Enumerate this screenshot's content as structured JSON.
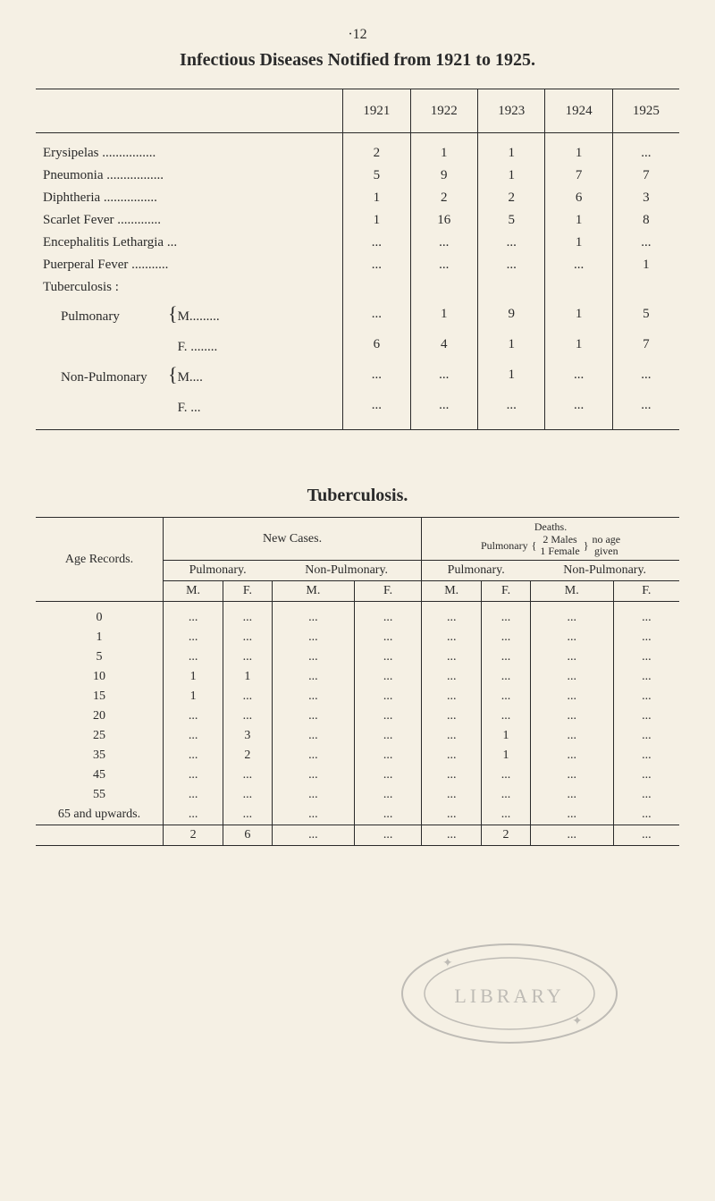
{
  "page_number": "·12",
  "title": "Infectious Diseases Notified from 1921 to 1925.",
  "table1": {
    "years": [
      "1921",
      "1922",
      "1923",
      "1924",
      "1925"
    ],
    "rows": [
      {
        "label": "Erysipelas",
        "dots": true,
        "vals": [
          "2",
          "1",
          "1",
          "1",
          "..."
        ]
      },
      {
        "label": "Pneumonia",
        "dots": true,
        "vals": [
          "5",
          "9",
          "1",
          "7",
          "7"
        ]
      },
      {
        "label": "Diphtheria",
        "dots": true,
        "vals": [
          "1",
          "2",
          "2",
          "6",
          "3"
        ]
      },
      {
        "label": "Scarlet Fever",
        "dots": true,
        "vals": [
          "1",
          "16",
          "5",
          "1",
          "8"
        ]
      },
      {
        "label": "Encephalitis Lethargia ...",
        "dots": false,
        "vals": [
          "...",
          "...",
          "...",
          "1",
          "..."
        ]
      },
      {
        "label": "Puerperal Fever",
        "dots": true,
        "vals": [
          "...",
          "...",
          "...",
          "...",
          "1"
        ]
      },
      {
        "label": "Tuberculosis :",
        "dots": false,
        "vals": [
          "",
          "",
          "",
          "",
          ""
        ]
      },
      {
        "label": "Pulmonary",
        "sub": "M.........",
        "dots": false,
        "vals": [
          "...",
          "1",
          "9",
          "1",
          "5"
        ]
      },
      {
        "label": "",
        "sub": "F. ........",
        "dots": false,
        "vals": [
          "6",
          "4",
          "1",
          "1",
          "7"
        ]
      },
      {
        "label": "Non-Pulmonary",
        "sub": "M....",
        "dots": false,
        "vals": [
          "...",
          "...",
          "1",
          "...",
          "..."
        ]
      },
      {
        "label": "",
        "sub": "F. ...",
        "dots": false,
        "vals": [
          "...",
          "...",
          "...",
          "...",
          "..."
        ]
      }
    ]
  },
  "subtitle": "Tuberculosis.",
  "table2": {
    "age_records_label": "Age Records.",
    "new_cases_label": "New Cases.",
    "deaths_label": "Deaths.",
    "pulmonary_note": "Pulmonary",
    "note_braces": "2 Males\n1 Female",
    "note_right": "no age\ngiven",
    "pulmonary": "Pulmonary.",
    "non_pulmonary": "Non-Pulmonary.",
    "mf": [
      "M.",
      "F.",
      "M.",
      "F.",
      "M.",
      "F.",
      "M.",
      "F."
    ],
    "ages": [
      "0",
      "1",
      "5",
      "10",
      "15",
      "20",
      "25",
      "35",
      "45",
      "55",
      "65 and upwards."
    ],
    "data": [
      [
        "...",
        "...",
        "...",
        "...",
        "...",
        "...",
        "...",
        "..."
      ],
      [
        "...",
        "...",
        "...",
        "...",
        "...",
        "...",
        "...",
        "..."
      ],
      [
        "...",
        "...",
        "...",
        "...",
        "...",
        "...",
        "...",
        "..."
      ],
      [
        "1",
        "1",
        "...",
        "...",
        "...",
        "...",
        "...",
        "..."
      ],
      [
        "1",
        "...",
        "...",
        "...",
        "...",
        "...",
        "...",
        "..."
      ],
      [
        "...",
        "...",
        "...",
        "...",
        "...",
        "...",
        "...",
        "..."
      ],
      [
        "...",
        "3",
        "...",
        "...",
        "...",
        "1",
        "...",
        "..."
      ],
      [
        "...",
        "2",
        "...",
        "...",
        "...",
        "1",
        "...",
        "..."
      ],
      [
        "...",
        "...",
        "...",
        "...",
        "...",
        "...",
        "...",
        "..."
      ],
      [
        "...",
        "...",
        "...",
        "...",
        "...",
        "...",
        "...",
        "..."
      ],
      [
        "...",
        "...",
        "...",
        "...",
        "...",
        "...",
        "...",
        "..."
      ]
    ],
    "totals": [
      "2",
      "6",
      "...",
      "...",
      "...",
      "2",
      "...",
      "..."
    ]
  },
  "seal_text": "LIBRARY"
}
